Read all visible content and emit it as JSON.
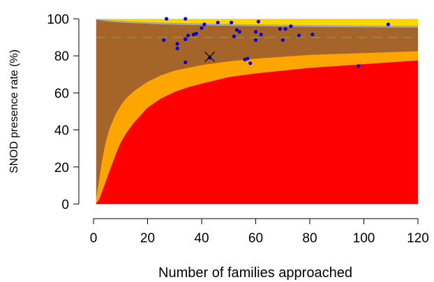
{
  "chart_data": {
    "type": "scatter",
    "title": "",
    "xlabel": "Number of families approached",
    "ylabel": "SNOD presence rate (%)",
    "xlim": [
      0,
      120
    ],
    "ylim": [
      0,
      100
    ],
    "xticks": [
      0,
      20,
      40,
      60,
      80,
      100,
      120
    ],
    "yticks": [
      0,
      20,
      40,
      60,
      80,
      100
    ],
    "grid": false,
    "reference_line": {
      "y": 90,
      "color": "#6aa84f",
      "style": "dashed"
    },
    "target_marker": {
      "x": 43,
      "y": 79.5,
      "symbol": "x"
    },
    "colors": {
      "outer_band": "#ffd700",
      "upper_band": "#a6a6a6",
      "brown_band": "#a5652a",
      "orange_band": "#ffa500",
      "red_band": "#ff0000",
      "points": "#0000dd",
      "reference_line": "#6aa84f"
    },
    "bands_by_x": {
      "x": [
        1,
        2,
        3,
        4,
        5,
        6,
        8,
        10,
        12,
        15,
        20,
        25,
        30,
        35,
        40,
        50,
        60,
        70,
        80,
        90,
        100,
        110,
        120
      ],
      "red_upper": [
        0.5,
        2,
        6,
        10,
        14,
        18,
        26,
        33,
        38,
        44,
        52,
        57,
        60.5,
        63,
        65,
        68.5,
        70.5,
        72,
        73.5,
        74.5,
        75.5,
        76.5,
        77.5
      ],
      "orange_upper": [
        3,
        12,
        22,
        30,
        36,
        41,
        48,
        53,
        57,
        61,
        66,
        69.5,
        72,
        73.5,
        75,
        77,
        78.5,
        79.5,
        80.5,
        81,
        81.5,
        82,
        82.5
      ],
      "brown_upper": [
        99.5,
        99.3,
        99,
        98.8,
        98.6,
        98.4,
        98.2,
        98,
        97.8,
        97.6,
        97.3,
        97,
        96.8,
        96.6,
        96.5,
        96.2,
        96,
        95.8,
        95.6,
        95.5,
        95.4,
        95.3,
        95.2
      ],
      "gray_upper": [
        99.8,
        99.7,
        99.6,
        99.5,
        99.4,
        99.3,
        99.1,
        99,
        98.8,
        98.5,
        98.2,
        98,
        97.8,
        97.6,
        97.5,
        97.2,
        97,
        96.8,
        96.6,
        96.5,
        96.4,
        96.3,
        96.2
      ],
      "yellow_upper": [
        100,
        100,
        100,
        100,
        100,
        100,
        100,
        100,
        100,
        100,
        100,
        100,
        100,
        100,
        100,
        100,
        100,
        100,
        100,
        100,
        100,
        100,
        100
      ]
    },
    "points": [
      [
        26,
        88.5
      ],
      [
        27,
        100
      ],
      [
        31,
        84
      ],
      [
        31,
        86.5
      ],
      [
        34,
        100
      ],
      [
        34,
        76.5
      ],
      [
        34,
        89
      ],
      [
        35,
        91
      ],
      [
        37,
        91.5
      ],
      [
        38,
        92
      ],
      [
        40,
        95
      ],
      [
        41,
        97
      ],
      [
        43,
        79
      ],
      [
        46,
        98
      ],
      [
        51,
        98
      ],
      [
        52,
        90.5
      ],
      [
        53,
        94
      ],
      [
        54,
        93
      ],
      [
        56,
        78
      ],
      [
        57,
        78.5
      ],
      [
        58,
        76
      ],
      [
        60,
        88.5
      ],
      [
        60,
        93
      ],
      [
        61,
        98.5
      ],
      [
        62,
        91.5
      ],
      [
        69,
        94.5
      ],
      [
        70,
        88.5
      ],
      [
        71,
        94.5
      ],
      [
        73,
        96
      ],
      [
        76,
        91
      ],
      [
        81,
        91.5
      ],
      [
        98,
        74.5
      ],
      [
        109,
        97
      ]
    ]
  }
}
